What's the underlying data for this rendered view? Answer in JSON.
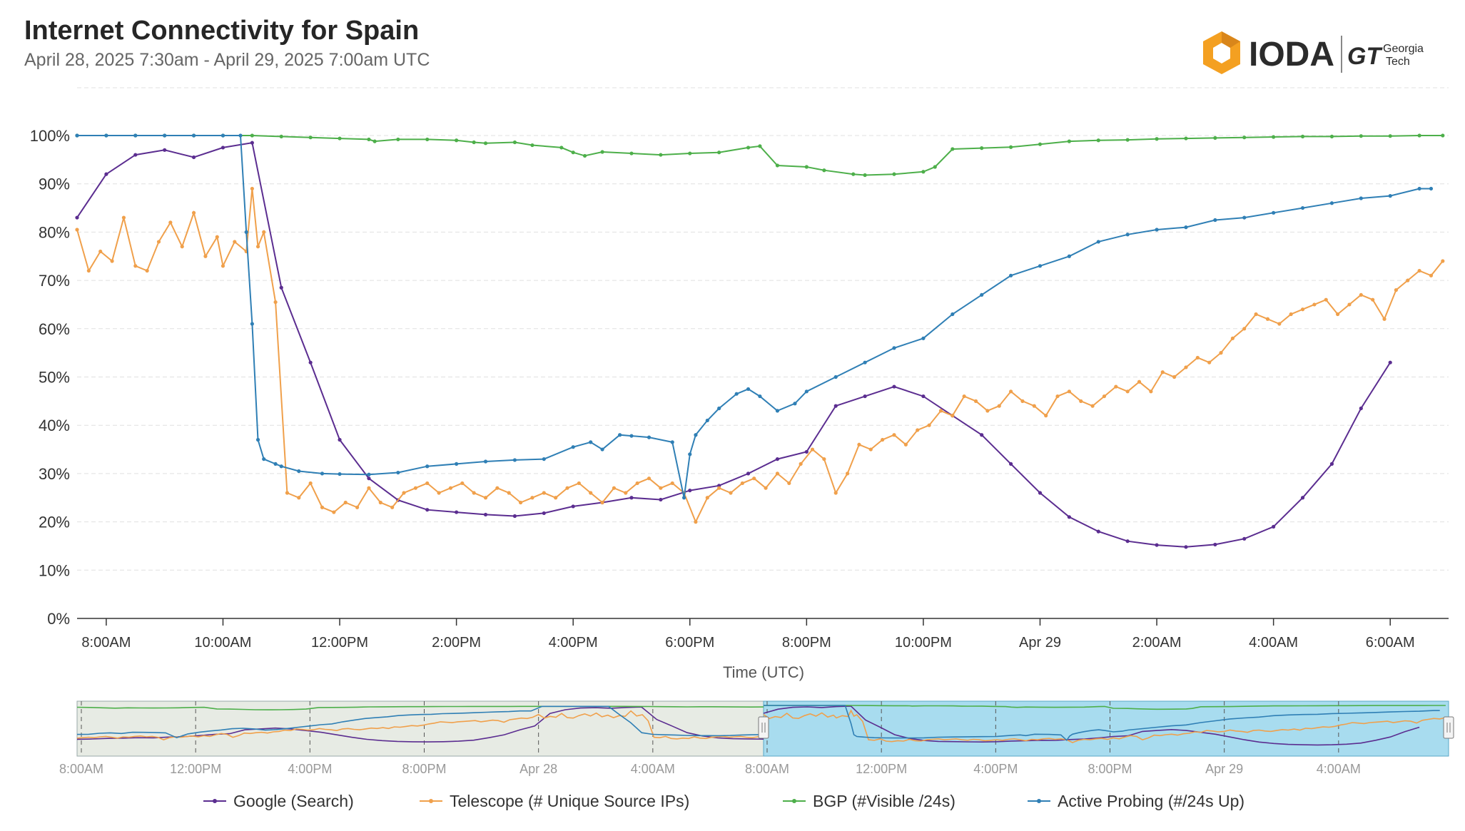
{
  "header": {
    "title": "Internet Connectivity for Spain",
    "subtitle": "April 28, 2025 7:30am - April 29, 2025 7:00am UTC"
  },
  "logo": {
    "ioda": "IODA",
    "gt_mark": "GT",
    "partner_line1": "Georgia",
    "partner_line2": "Tech",
    "brand_color": "#f4a021"
  },
  "chart_data": {
    "type": "line",
    "title": "Internet Connectivity for Spain",
    "xlabel": "Time (UTC)",
    "ylabel": "",
    "xlim": [
      7.5,
      31.0
    ],
    "ylim": [
      0,
      100
    ],
    "y_ticks": [
      0,
      10,
      20,
      30,
      40,
      50,
      60,
      70,
      80,
      90,
      100
    ],
    "y_tick_labels": [
      "0%",
      "10%",
      "20%",
      "30%",
      "40%",
      "50%",
      "60%",
      "70%",
      "80%",
      "90%",
      "100%"
    ],
    "x_ticks": [
      8,
      10,
      12,
      14,
      16,
      18,
      20,
      22,
      24,
      26,
      28,
      30
    ],
    "x_tick_labels": [
      "8:00AM",
      "10:00AM",
      "12:00PM",
      "2:00PM",
      "4:00PM",
      "6:00PM",
      "8:00PM",
      "10:00PM",
      "Apr 29",
      "2:00AM",
      "4:00AM",
      "6:00AM"
    ],
    "grid": true,
    "legend_position": "bottom",
    "series": [
      {
        "name": "Google (Search)",
        "color": "#5b2d90",
        "x": [
          7.5,
          8.0,
          8.5,
          9.0,
          9.5,
          10.0,
          10.5,
          11.0,
          11.5,
          12.0,
          12.5,
          13.0,
          13.5,
          14.0,
          14.5,
          15.0,
          15.5,
          16.0,
          16.5,
          17.0,
          17.5,
          18.0,
          18.5,
          19.0,
          19.5,
          20.0,
          20.5,
          21.0,
          21.5,
          22.0,
          22.5,
          23.0,
          23.5,
          24.0,
          24.5,
          25.0,
          25.5,
          26.0,
          26.5,
          27.0,
          27.5,
          28.0,
          28.5,
          29.0,
          29.5,
          30.0
        ],
        "y": [
          83,
          92,
          96,
          97,
          95.5,
          97.5,
          98.5,
          68.5,
          53,
          37,
          29,
          24.5,
          22.5,
          22,
          21.5,
          21.2,
          21.8,
          23.2,
          24,
          25,
          24.6,
          26.5,
          27.5,
          30,
          33,
          34.5,
          44,
          46,
          48,
          46,
          42,
          38,
          32,
          26,
          21,
          18,
          16,
          15.2,
          14.8,
          15.3,
          16.5,
          19,
          25,
          32,
          43.5,
          53
        ]
      },
      {
        "name": "Telescope (# Unique Source IPs)",
        "color": "#f0a04b",
        "x": [
          7.5,
          7.7,
          7.9,
          8.1,
          8.3,
          8.5,
          8.7,
          8.9,
          9.1,
          9.3,
          9.5,
          9.7,
          9.9,
          10.0,
          10.2,
          10.4,
          10.5,
          10.6,
          10.7,
          10.9,
          11.1,
          11.3,
          11.5,
          11.7,
          11.9,
          12.1,
          12.3,
          12.5,
          12.7,
          12.9,
          13.1,
          13.3,
          13.5,
          13.7,
          13.9,
          14.1,
          14.3,
          14.5,
          14.7,
          14.9,
          15.1,
          15.3,
          15.5,
          15.7,
          15.9,
          16.1,
          16.3,
          16.5,
          16.7,
          16.9,
          17.1,
          17.3,
          17.5,
          17.7,
          17.9,
          18.1,
          18.3,
          18.5,
          18.7,
          18.9,
          19.1,
          19.3,
          19.5,
          19.7,
          19.9,
          20.1,
          20.3,
          20.5,
          20.7,
          20.9,
          21.1,
          21.3,
          21.5,
          21.7,
          21.9,
          22.1,
          22.3,
          22.5,
          22.7,
          22.9,
          23.1,
          23.3,
          23.5,
          23.7,
          23.9,
          24.1,
          24.3,
          24.5,
          24.7,
          24.9,
          25.1,
          25.3,
          25.5,
          25.7,
          25.9,
          26.1,
          26.3,
          26.5,
          26.7,
          26.9,
          27.1,
          27.3,
          27.5,
          27.7,
          27.9,
          28.1,
          28.3,
          28.5,
          28.7,
          28.9,
          29.1,
          29.3,
          29.5,
          29.7,
          29.9,
          30.1,
          30.3,
          30.5,
          30.7,
          30.9
        ],
        "y": [
          80.5,
          72,
          76,
          74,
          83,
          73,
          72,
          78,
          82,
          77,
          84,
          75,
          79,
          73,
          78,
          76,
          89,
          77,
          80,
          65.5,
          26,
          25,
          28,
          23,
          22,
          24,
          23,
          27,
          24,
          23,
          26,
          27,
          28,
          26,
          27,
          28,
          26,
          25,
          27,
          26,
          24,
          25,
          26,
          25,
          27,
          28,
          26,
          24,
          27,
          26,
          28,
          29,
          27,
          28,
          26,
          20,
          25,
          27,
          26,
          28,
          29,
          27,
          30,
          28,
          32,
          35,
          33,
          26,
          30,
          36,
          35,
          37,
          38,
          36,
          39,
          40,
          43,
          42,
          46,
          45,
          43,
          44,
          47,
          45,
          44,
          42,
          46,
          47,
          45,
          44,
          46,
          48,
          47,
          49,
          47,
          51,
          50,
          52,
          54,
          53,
          55,
          58,
          60,
          63,
          62,
          61,
          63,
          64,
          65,
          66,
          63,
          65,
          67,
          66,
          62,
          68,
          70,
          72,
          71,
          74
        ]
      },
      {
        "name": "BGP (#Visible /24s)",
        "color": "#4daf4a",
        "x": [
          7.5,
          8.0,
          8.5,
          9.0,
          9.5,
          10.0,
          10.5,
          11.0,
          11.5,
          12.0,
          12.5,
          12.6,
          13.0,
          13.5,
          14.0,
          14.3,
          14.5,
          15.0,
          15.3,
          15.8,
          16.0,
          16.2,
          16.5,
          17.0,
          17.5,
          18.0,
          18.5,
          19.0,
          19.2,
          19.5,
          20.0,
          20.3,
          20.8,
          21.0,
          21.5,
          22.0,
          22.2,
          22.5,
          23.0,
          23.5,
          24.0,
          24.5,
          25.0,
          25.5,
          26.0,
          26.5,
          27.0,
          27.5,
          28.0,
          28.5,
          29.0,
          29.5,
          30.0,
          30.5,
          30.9
        ],
        "y": [
          100,
          100,
          100,
          100,
          100,
          100,
          100,
          99.8,
          99.6,
          99.4,
          99.2,
          98.8,
          99.2,
          99.2,
          99.0,
          98.6,
          98.4,
          98.6,
          98.0,
          97.5,
          96.5,
          95.8,
          96.6,
          96.3,
          96.0,
          96.3,
          96.5,
          97.5,
          97.8,
          93.8,
          93.5,
          92.8,
          92.0,
          91.8,
          92.0,
          92.5,
          93.5,
          97.2,
          97.4,
          97.6,
          98.2,
          98.8,
          99.0,
          99.1,
          99.3,
          99.4,
          99.5,
          99.6,
          99.7,
          99.8,
          99.8,
          99.9,
          99.9,
          100,
          100
        ]
      },
      {
        "name": "Active Probing (#/24s Up)",
        "color": "#2f7fb5",
        "x": [
          7.5,
          8.0,
          8.5,
          9.0,
          9.5,
          10.0,
          10.3,
          10.4,
          10.5,
          10.6,
          10.7,
          10.9,
          11.0,
          11.3,
          11.7,
          12.0,
          12.5,
          13.0,
          13.5,
          14.0,
          14.5,
          15.0,
          15.5,
          16.0,
          16.3,
          16.5,
          16.8,
          17.0,
          17.3,
          17.7,
          17.9,
          18.0,
          18.1,
          18.3,
          18.5,
          18.8,
          19.0,
          19.2,
          19.5,
          19.8,
          20.0,
          20.5,
          21.0,
          21.5,
          22.0,
          22.5,
          23.0,
          23.5,
          24.0,
          24.5,
          25.0,
          25.5,
          26.0,
          26.5,
          27.0,
          27.5,
          28.0,
          28.5,
          29.0,
          29.5,
          30.0,
          30.5,
          30.7
        ],
        "y": [
          100,
          100,
          100,
          100,
          100,
          100,
          100,
          80,
          61,
          37,
          33,
          32,
          31.5,
          30.5,
          30,
          29.9,
          29.8,
          30.2,
          31.5,
          32,
          32.5,
          32.8,
          33,
          35.5,
          36.5,
          35,
          38,
          37.8,
          37.5,
          36.5,
          25,
          34,
          38,
          41,
          43.5,
          46.5,
          47.5,
          46,
          43,
          44.5,
          47,
          50,
          53,
          56,
          58,
          63,
          67,
          71,
          73,
          75,
          78,
          79.5,
          80.5,
          81,
          82.5,
          83,
          84,
          85,
          86,
          87,
          87.5,
          89,
          89
        ]
      }
    ]
  },
  "navigator": {
    "x_tick_labels": [
      "8:00AM",
      "12:00PM",
      "4:00PM",
      "8:00PM",
      "Apr 28",
      "4:00AM",
      "8:00AM",
      "12:00PM",
      "4:00PM",
      "8:00PM",
      "Apr 29",
      "4:00AM"
    ]
  }
}
